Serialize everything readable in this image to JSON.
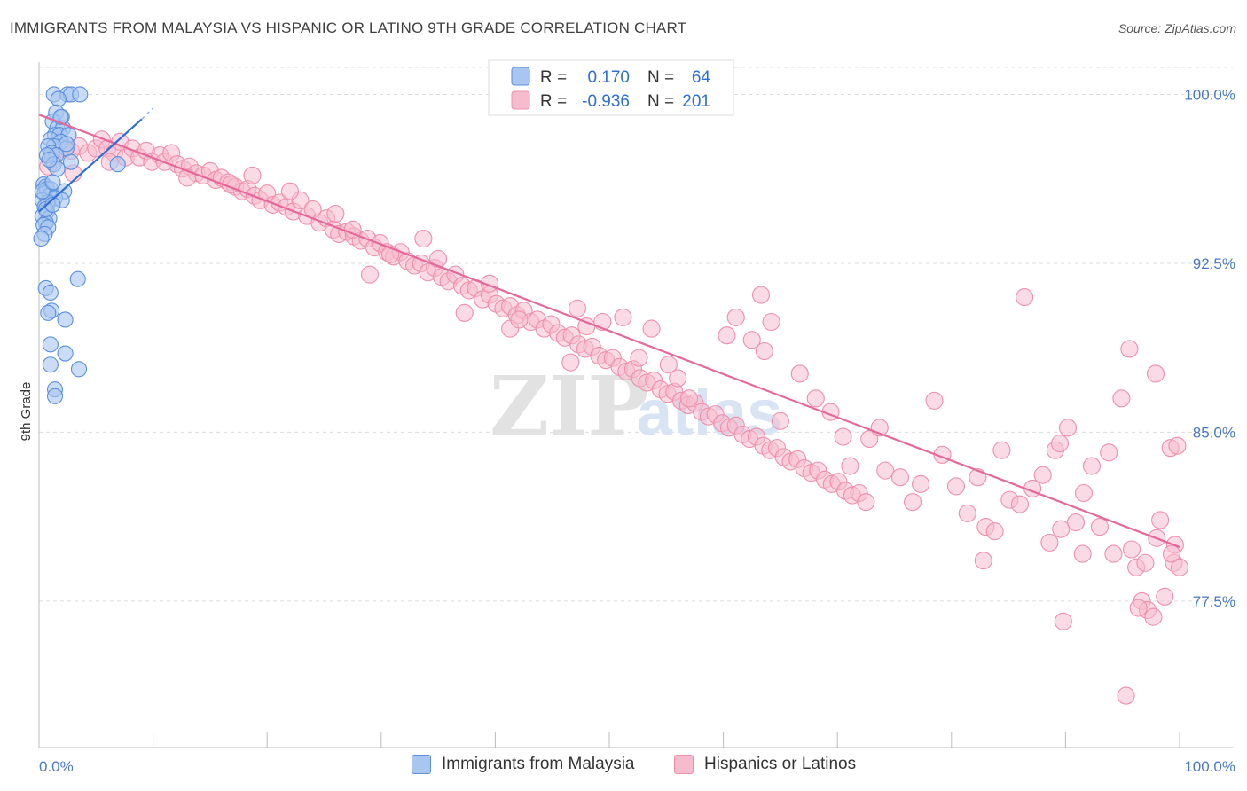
{
  "header": {
    "title": "IMMIGRANTS FROM MALAYSIA VS HISPANIC OR LATINO 9TH GRADE CORRELATION CHART",
    "source": "Source: ZipAtlas.com"
  },
  "watermark": {
    "zip": "ZIP",
    "atlas": "atlas"
  },
  "legend_box": {
    "rows": [
      {
        "r_label": "R =",
        "r_value": "0.170",
        "n_label": "N =",
        "n_value": "64"
      },
      {
        "r_label": "R =",
        "r_value": "-0.936",
        "n_label": "N =",
        "n_value": "201"
      }
    ]
  },
  "colors": {
    "blue_fill": "#a9c6f0",
    "blue_stroke": "#5b8fdc",
    "blue_line": "#2f6fd0",
    "pink_fill": "#f6bccd",
    "pink_stroke": "#ee8fac",
    "pink_line": "#e5689a",
    "tick_text": "#4a78c8",
    "grid": "#dcdcdc"
  },
  "chart_data": {
    "type": "scatter",
    "title": "IMMIGRANTS FROM MALAYSIA VS HISPANIC OR LATINO 9TH GRADE CORRELATION CHART",
    "xlabel": "",
    "ylabel": "9th Grade",
    "xlim": [
      0,
      100
    ],
    "ylim": [
      71.0,
      101.2
    ],
    "x_tick_labels": [
      "0.0%",
      "100.0%"
    ],
    "y_ticks": [
      77.5,
      85.0,
      92.5,
      100.0
    ],
    "y_tick_labels": [
      "77.5%",
      "85.0%",
      "92.5%",
      "100.0%"
    ],
    "grid": true,
    "legend_position": "bottom",
    "series": [
      {
        "name": "Immigrants from Malaysia",
        "color": "blue",
        "r": 0.17,
        "n": 64,
        "trend": {
          "x": [
            0,
            9
          ],
          "y": [
            94.8,
            98.9
          ],
          "dashed_to": [
            10,
            99.4
          ]
        },
        "points": [
          [
            1.3,
            100.0
          ],
          [
            2.5,
            100.0
          ],
          [
            2.8,
            100.0
          ],
          [
            3.6,
            100.0
          ],
          [
            1.7,
            99.8
          ],
          [
            1.5,
            99.2
          ],
          [
            2.0,
            99.0
          ],
          [
            1.2,
            98.8
          ],
          [
            1.6,
            98.5
          ],
          [
            2.1,
            98.5
          ],
          [
            1.4,
            98.2
          ],
          [
            1.8,
            98.2
          ],
          [
            2.6,
            98.2
          ],
          [
            1.0,
            98.0
          ],
          [
            1.9,
            97.9
          ],
          [
            1.3,
            97.7
          ],
          [
            0.8,
            97.7
          ],
          [
            2.4,
            97.6
          ],
          [
            1.1,
            97.4
          ],
          [
            1.5,
            97.3
          ],
          [
            0.7,
            97.3
          ],
          [
            2.8,
            97.0
          ],
          [
            1.3,
            96.9
          ],
          [
            1.6,
            96.7
          ],
          [
            6.9,
            96.9
          ],
          [
            0.4,
            96.0
          ],
          [
            0.6,
            95.9
          ],
          [
            0.7,
            95.8
          ],
          [
            1.0,
            95.8
          ],
          [
            2.2,
            95.7
          ],
          [
            0.5,
            95.6
          ],
          [
            0.9,
            95.5
          ],
          [
            1.4,
            95.4
          ],
          [
            0.3,
            95.3
          ],
          [
            0.8,
            95.2
          ],
          [
            2.0,
            95.3
          ],
          [
            0.5,
            95.0
          ],
          [
            0.7,
            94.8
          ],
          [
            0.3,
            94.6
          ],
          [
            0.9,
            94.5
          ],
          [
            0.6,
            94.3
          ],
          [
            0.4,
            94.2
          ],
          [
            0.8,
            94.1
          ],
          [
            0.5,
            93.8
          ],
          [
            0.2,
            93.6
          ],
          [
            3.4,
            91.8
          ],
          [
            0.6,
            91.4
          ],
          [
            1.0,
            91.2
          ],
          [
            1.1,
            90.4
          ],
          [
            0.8,
            90.3
          ],
          [
            2.3,
            90.0
          ],
          [
            1.0,
            88.9
          ],
          [
            2.3,
            88.5
          ],
          [
            1.0,
            88.0
          ],
          [
            3.5,
            87.8
          ],
          [
            1.4,
            86.9
          ],
          [
            1.4,
            86.6
          ],
          [
            0.3,
            95.7
          ],
          [
            1.2,
            96.1
          ],
          [
            0.6,
            94.9
          ],
          [
            1.9,
            99.0
          ],
          [
            2.4,
            97.8
          ],
          [
            0.9,
            97.1
          ],
          [
            1.2,
            95.1
          ]
        ]
      },
      {
        "name": "Hispanics or Latinos",
        "color": "pink",
        "r": -0.936,
        "n": 201,
        "trend": {
          "x": [
            0,
            100
          ],
          "y": [
            99.1,
            79.9
          ]
        },
        "points": [
          [
            0.8,
            96.8
          ],
          [
            1.2,
            97.1
          ],
          [
            2.0,
            97.6
          ],
          [
            2.8,
            97.5
          ],
          [
            3.5,
            97.7
          ],
          [
            4.3,
            97.4
          ],
          [
            5.0,
            97.6
          ],
          [
            5.5,
            98.0
          ],
          [
            6.0,
            97.6
          ],
          [
            6.6,
            97.4
          ],
          [
            7.1,
            97.9
          ],
          [
            7.6,
            97.2
          ],
          [
            8.2,
            97.6
          ],
          [
            8.8,
            97.2
          ],
          [
            9.4,
            97.5
          ],
          [
            9.9,
            97.0
          ],
          [
            10.6,
            97.3
          ],
          [
            11.0,
            97.0
          ],
          [
            11.6,
            97.4
          ],
          [
            12.1,
            96.9
          ],
          [
            12.6,
            96.7
          ],
          [
            13.2,
            96.8
          ],
          [
            13.8,
            96.5
          ],
          [
            14.4,
            96.4
          ],
          [
            15.0,
            96.6
          ],
          [
            15.5,
            96.2
          ],
          [
            16.0,
            96.3
          ],
          [
            16.6,
            96.1
          ],
          [
            17.2,
            95.9
          ],
          [
            17.8,
            95.7
          ],
          [
            18.3,
            95.8
          ],
          [
            18.9,
            95.5
          ],
          [
            19.4,
            95.3
          ],
          [
            20.0,
            95.6
          ],
          [
            20.5,
            95.1
          ],
          [
            21.1,
            95.2
          ],
          [
            21.7,
            95.0
          ],
          [
            22.3,
            94.8
          ],
          [
            22.9,
            95.3
          ],
          [
            23.5,
            94.6
          ],
          [
            24.0,
            94.9
          ],
          [
            24.6,
            94.3
          ],
          [
            25.2,
            94.5
          ],
          [
            25.8,
            94.0
          ],
          [
            26.3,
            93.8
          ],
          [
            27.0,
            93.9
          ],
          [
            27.6,
            93.7
          ],
          [
            28.2,
            93.5
          ],
          [
            28.8,
            93.6
          ],
          [
            29.4,
            93.2
          ],
          [
            29.9,
            93.4
          ],
          [
            30.5,
            93.0
          ],
          [
            31.1,
            92.8
          ],
          [
            31.7,
            93.0
          ],
          [
            32.3,
            92.6
          ],
          [
            32.9,
            92.4
          ],
          [
            33.5,
            92.5
          ],
          [
            34.1,
            92.1
          ],
          [
            34.7,
            92.3
          ],
          [
            35.3,
            91.9
          ],
          [
            35.9,
            91.7
          ],
          [
            36.5,
            92.0
          ],
          [
            37.1,
            91.5
          ],
          [
            37.7,
            91.3
          ],
          [
            38.3,
            91.4
          ],
          [
            38.9,
            90.9
          ],
          [
            39.5,
            91.1
          ],
          [
            40.1,
            90.7
          ],
          [
            40.7,
            90.5
          ],
          [
            41.3,
            90.6
          ],
          [
            41.9,
            90.2
          ],
          [
            42.5,
            90.4
          ],
          [
            43.1,
            89.9
          ],
          [
            43.7,
            90.0
          ],
          [
            44.3,
            89.6
          ],
          [
            44.9,
            89.8
          ],
          [
            45.5,
            89.4
          ],
          [
            46.1,
            89.2
          ],
          [
            46.7,
            89.3
          ],
          [
            47.3,
            88.9
          ],
          [
            47.9,
            88.7
          ],
          [
            48.5,
            88.8
          ],
          [
            49.1,
            88.4
          ],
          [
            49.7,
            88.2
          ],
          [
            50.3,
            88.3
          ],
          [
            50.9,
            87.9
          ],
          [
            51.5,
            87.7
          ],
          [
            52.1,
            87.8
          ],
          [
            52.7,
            87.4
          ],
          [
            53.3,
            87.2
          ],
          [
            53.9,
            87.3
          ],
          [
            54.5,
            86.9
          ],
          [
            55.1,
            86.7
          ],
          [
            55.7,
            86.8
          ],
          [
            56.3,
            86.4
          ],
          [
            56.9,
            86.2
          ],
          [
            57.5,
            86.3
          ],
          [
            58.1,
            85.9
          ],
          [
            58.7,
            85.7
          ],
          [
            59.3,
            85.8
          ],
          [
            59.9,
            85.4
          ],
          [
            60.5,
            85.2
          ],
          [
            61.1,
            85.3
          ],
          [
            61.7,
            84.9
          ],
          [
            62.3,
            84.7
          ],
          [
            62.9,
            84.8
          ],
          [
            63.5,
            84.4
          ],
          [
            64.1,
            84.2
          ],
          [
            64.7,
            84.3
          ],
          [
            65.3,
            83.9
          ],
          [
            65.9,
            83.7
          ],
          [
            66.5,
            83.8
          ],
          [
            67.1,
            83.4
          ],
          [
            67.7,
            83.2
          ],
          [
            68.3,
            83.3
          ],
          [
            68.9,
            82.9
          ],
          [
            69.5,
            82.7
          ],
          [
            70.1,
            82.8
          ],
          [
            70.7,
            82.4
          ],
          [
            71.3,
            82.2
          ],
          [
            71.9,
            82.3
          ],
          [
            72.5,
            81.9
          ],
          [
            3.0,
            96.5
          ],
          [
            6.2,
            97.0
          ],
          [
            13.0,
            96.3
          ],
          [
            16.8,
            96.0
          ],
          [
            18.7,
            96.4
          ],
          [
            22.0,
            95.7
          ],
          [
            26.0,
            94.7
          ],
          [
            27.5,
            94.0
          ],
          [
            30.8,
            92.9
          ],
          [
            29.0,
            92.0
          ],
          [
            33.7,
            93.6
          ],
          [
            35.0,
            92.7
          ],
          [
            37.3,
            90.3
          ],
          [
            39.5,
            91.6
          ],
          [
            41.3,
            89.6
          ],
          [
            42.1,
            90.0
          ],
          [
            46.6,
            88.1
          ],
          [
            47.2,
            90.5
          ],
          [
            48.0,
            89.7
          ],
          [
            49.4,
            89.9
          ],
          [
            51.2,
            90.1
          ],
          [
            52.6,
            88.3
          ],
          [
            53.7,
            89.6
          ],
          [
            55.2,
            88.0
          ],
          [
            56.0,
            87.4
          ],
          [
            57.0,
            86.5
          ],
          [
            60.3,
            89.3
          ],
          [
            61.1,
            90.1
          ],
          [
            62.5,
            89.1
          ],
          [
            63.6,
            88.6
          ],
          [
            64.2,
            89.9
          ],
          [
            63.3,
            91.1
          ],
          [
            65.0,
            85.5
          ],
          [
            66.7,
            87.6
          ],
          [
            68.1,
            86.5
          ],
          [
            69.4,
            85.9
          ],
          [
            70.5,
            84.8
          ],
          [
            71.1,
            83.5
          ],
          [
            72.8,
            84.7
          ],
          [
            73.7,
            85.2
          ],
          [
            74.2,
            83.3
          ],
          [
            75.5,
            83.0
          ],
          [
            76.6,
            81.9
          ],
          [
            77.3,
            82.7
          ],
          [
            78.5,
            86.4
          ],
          [
            79.2,
            84.0
          ],
          [
            80.4,
            82.6
          ],
          [
            81.4,
            81.4
          ],
          [
            82.3,
            83.0
          ],
          [
            83.0,
            80.8
          ],
          [
            83.8,
            80.6
          ],
          [
            84.4,
            84.2
          ],
          [
            85.1,
            82.0
          ],
          [
            86.0,
            81.8
          ],
          [
            87.1,
            82.5
          ],
          [
            88.0,
            83.1
          ],
          [
            88.6,
            80.1
          ],
          [
            89.1,
            84.2
          ],
          [
            89.5,
            84.5
          ],
          [
            90.2,
            85.2
          ],
          [
            90.9,
            81.0
          ],
          [
            91.6,
            82.3
          ],
          [
            92.3,
            83.5
          ],
          [
            93.0,
            80.8
          ],
          [
            93.8,
            84.1
          ],
          [
            94.2,
            79.6
          ],
          [
            94.9,
            86.5
          ],
          [
            95.6,
            88.7
          ],
          [
            96.2,
            79.0
          ],
          [
            96.7,
            77.5
          ],
          [
            97.2,
            77.1
          ],
          [
            97.7,
            76.8
          ],
          [
            98.0,
            80.3
          ],
          [
            98.7,
            77.7
          ],
          [
            99.2,
            84.3
          ],
          [
            99.6,
            80.0
          ],
          [
            97.0,
            79.2
          ],
          [
            91.5,
            79.6
          ],
          [
            89.6,
            80.7
          ],
          [
            95.3,
            73.3
          ],
          [
            82.8,
            79.3
          ],
          [
            86.4,
            91.0
          ],
          [
            89.8,
            76.6
          ],
          [
            95.8,
            79.8
          ],
          [
            99.5,
            79.2
          ],
          [
            98.3,
            81.1
          ],
          [
            97.9,
            87.6
          ],
          [
            99.3,
            79.6
          ],
          [
            99.8,
            84.4
          ],
          [
            100.0,
            79.0
          ],
          [
            96.4,
            77.2
          ]
        ]
      }
    ]
  },
  "bottom_legend": {
    "items": [
      {
        "label": "Immigrants from Malaysia"
      },
      {
        "label": "Hispanics or Latinos"
      }
    ]
  }
}
